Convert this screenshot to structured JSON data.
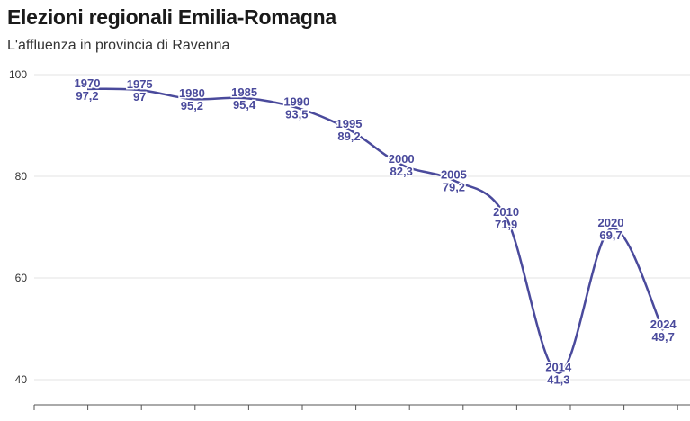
{
  "title": "Elezioni regionali Emilia-Romagna",
  "subtitle": "L'affluenza in provincia di Ravenna",
  "colors": {
    "line": "#4a4a9c",
    "grid": "#e3e3e3",
    "axis": "#555555"
  },
  "chart_data": {
    "type": "line",
    "title": "Elezioni regionali Emilia-Romagna",
    "subtitle": "L'affluenza in provincia di Ravenna",
    "categories": [
      "1970",
      "1975",
      "1980",
      "1985",
      "1990",
      "1995",
      "2000",
      "2005",
      "2010",
      "2014",
      "2020",
      "2024"
    ],
    "values": [
      97.2,
      97,
      95.2,
      95.4,
      93.5,
      89.2,
      82.3,
      79.2,
      71.9,
      41.3,
      69.7,
      49.7
    ],
    "value_labels": [
      "97,2",
      "97",
      "95,2",
      "95,4",
      "93,5",
      "89,2",
      "82,3",
      "79,2",
      "71,9",
      "41,3",
      "69,7",
      "49,7"
    ],
    "ylim": [
      40,
      100
    ],
    "yticks": [
      40,
      60,
      80,
      100
    ],
    "grid": true,
    "xlabel": "",
    "ylabel": ""
  }
}
